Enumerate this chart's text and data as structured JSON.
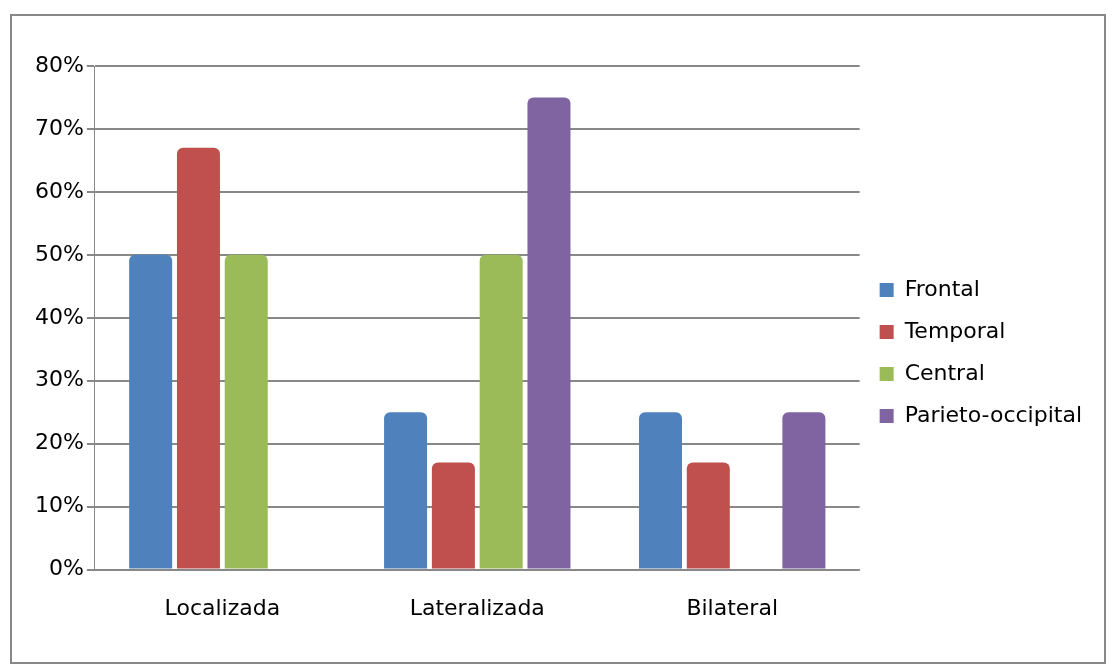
{
  "chart_data": {
    "type": "bar",
    "categories": [
      "Localizada",
      "Lateralizada",
      "Bilateral"
    ],
    "series": [
      {
        "name": "Frontal",
        "color": "#4f81bd",
        "values": [
          50,
          25,
          25
        ]
      },
      {
        "name": "Temporal",
        "color": "#c0504d",
        "values": [
          67,
          17,
          17
        ]
      },
      {
        "name": "Central",
        "color": "#9bbb59",
        "values": [
          50,
          50,
          0
        ]
      },
      {
        "name": "Parieto-occipital",
        "color": "#8064a2",
        "values": [
          0,
          75,
          25
        ]
      }
    ],
    "ylim": [
      0,
      80
    ],
    "yticks": [
      {
        "value": 0,
        "label": "0%"
      },
      {
        "value": 10,
        "label": "10%"
      },
      {
        "value": 20,
        "label": "20%"
      },
      {
        "value": 30,
        "label": "30%"
      },
      {
        "value": 40,
        "label": "40%"
      },
      {
        "value": 50,
        "label": "50%"
      },
      {
        "value": 60,
        "label": "60%"
      },
      {
        "value": 70,
        "label": "70%"
      },
      {
        "value": 80,
        "label": "80%"
      }
    ],
    "grid": "y",
    "legend": "right"
  }
}
